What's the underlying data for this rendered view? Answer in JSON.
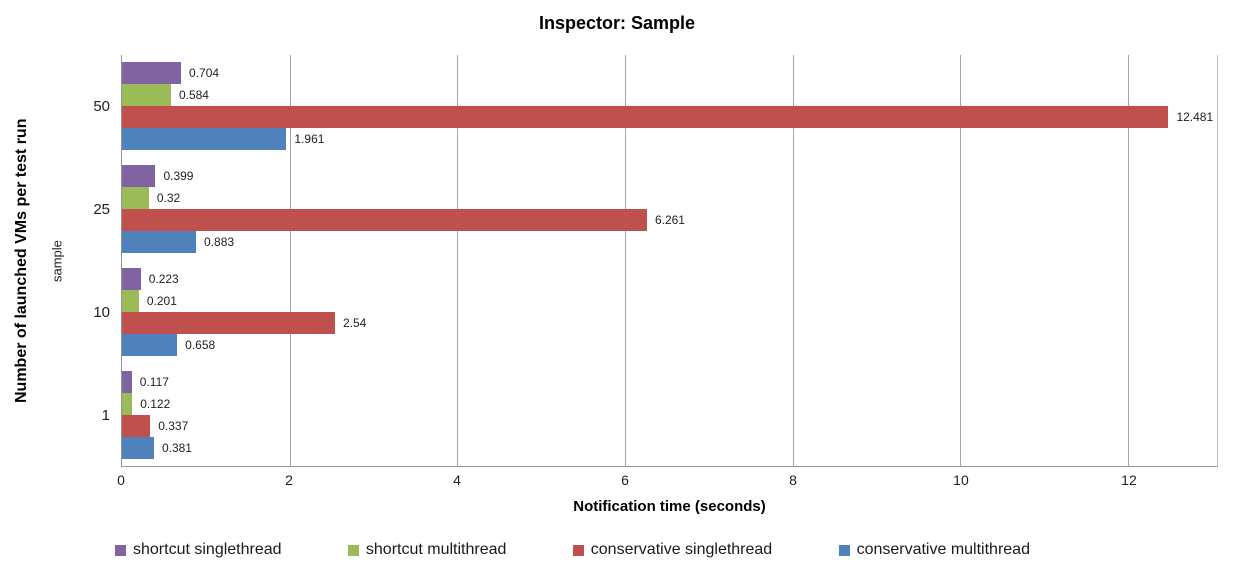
{
  "chart_data": {
    "type": "bar",
    "orientation": "horizontal",
    "title": "Inspector: Sample",
    "xlabel": "Notification time (seconds)",
    "ylabel": "Number of launched VMs per test run",
    "ylabel_secondary": "sample",
    "categories": [
      "50",
      "25",
      "10",
      "1"
    ],
    "series": [
      {
        "name": "shortcut singlethread",
        "color": "#8064A2",
        "values": [
          "0.704",
          "0.399",
          "0.223",
          "0.117"
        ]
      },
      {
        "name": "shortcut multithread",
        "color": "#9BBB59",
        "values": [
          "0.584",
          "0.32",
          "0.201",
          "0.122"
        ]
      },
      {
        "name": "conservative singlethread",
        "color": "#C0504D",
        "values": [
          "12.481",
          "6.261",
          "2.54",
          "0.337"
        ]
      },
      {
        "name": "conservative multithread",
        "color": "#4F81BD",
        "values": [
          "1.961",
          "0.883",
          "0.658",
          "0.381"
        ]
      }
    ],
    "xticks": [
      "0",
      "2",
      "4",
      "6",
      "8",
      "10",
      "12"
    ],
    "xlim": [
      0,
      13.06
    ],
    "grid": "vertical-gridlines",
    "legend_position": "bottom",
    "gridline_color": "#A3A3A3",
    "axis_line_color": "#969696"
  }
}
